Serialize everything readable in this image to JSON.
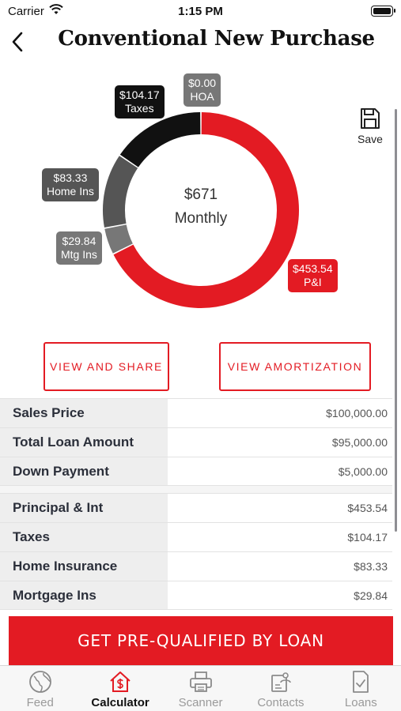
{
  "status": {
    "carrier": "Carrier",
    "time": "1:15 PM"
  },
  "header": {
    "title": "Conventional New Purchase",
    "back_icon": "chevron-left-icon"
  },
  "save": {
    "label": "Save",
    "icon": "floppy-disk-icon"
  },
  "summary": {
    "amount": "$671",
    "period": "Monthly"
  },
  "breakdown": [
    {
      "key": "pi",
      "amount": "$453.54",
      "label": "P&I",
      "value": 453.54,
      "color": "#e31b23"
    },
    {
      "key": "mtgins",
      "amount": "$29.84",
      "label": "Mtg Ins",
      "value": 29.84,
      "color": "#777777"
    },
    {
      "key": "homeins",
      "amount": "$83.33",
      "label": "Home Ins",
      "value": 83.33,
      "color": "#555555"
    },
    {
      "key": "taxes",
      "amount": "$104.17",
      "label": "Taxes",
      "value": 104.17,
      "color": "#111111"
    },
    {
      "key": "hoa",
      "amount": "$0.00",
      "label": "HOA",
      "value": 0,
      "color": "#777777"
    }
  ],
  "buttons": {
    "share": "VIEW AND SHARE",
    "amortization": "VIEW AMORTIZATION"
  },
  "loan_table": [
    {
      "label": "Sales Price",
      "value": "$100,000.00"
    },
    {
      "label": "Total Loan Amount",
      "value": "$95,000.00"
    },
    {
      "label": "Down Payment",
      "value": "$5,000.00"
    }
  ],
  "payment_table": [
    {
      "label": "Principal & Int",
      "value": "$453.54"
    },
    {
      "label": "Taxes",
      "value": "$104.17"
    },
    {
      "label": "Home Insurance",
      "value": "$83.33"
    },
    {
      "label": "Mortgage Ins",
      "value": "$29.84"
    }
  ],
  "cta": {
    "label": "GET PRE-QUALIFIED BY LOAN"
  },
  "tabs": [
    {
      "label": "Feed",
      "icon": "globe-icon",
      "active": false
    },
    {
      "label": "Calculator",
      "icon": "house-dollar-icon",
      "active": true
    },
    {
      "label": "Scanner",
      "icon": "printer-icon",
      "active": false
    },
    {
      "label": "Contacts",
      "icon": "contacts-icon",
      "active": false
    },
    {
      "label": "Loans",
      "icon": "document-check-icon",
      "active": false
    }
  ],
  "colors": {
    "accent": "#e31b23",
    "label_bg": "#eeeeee"
  }
}
